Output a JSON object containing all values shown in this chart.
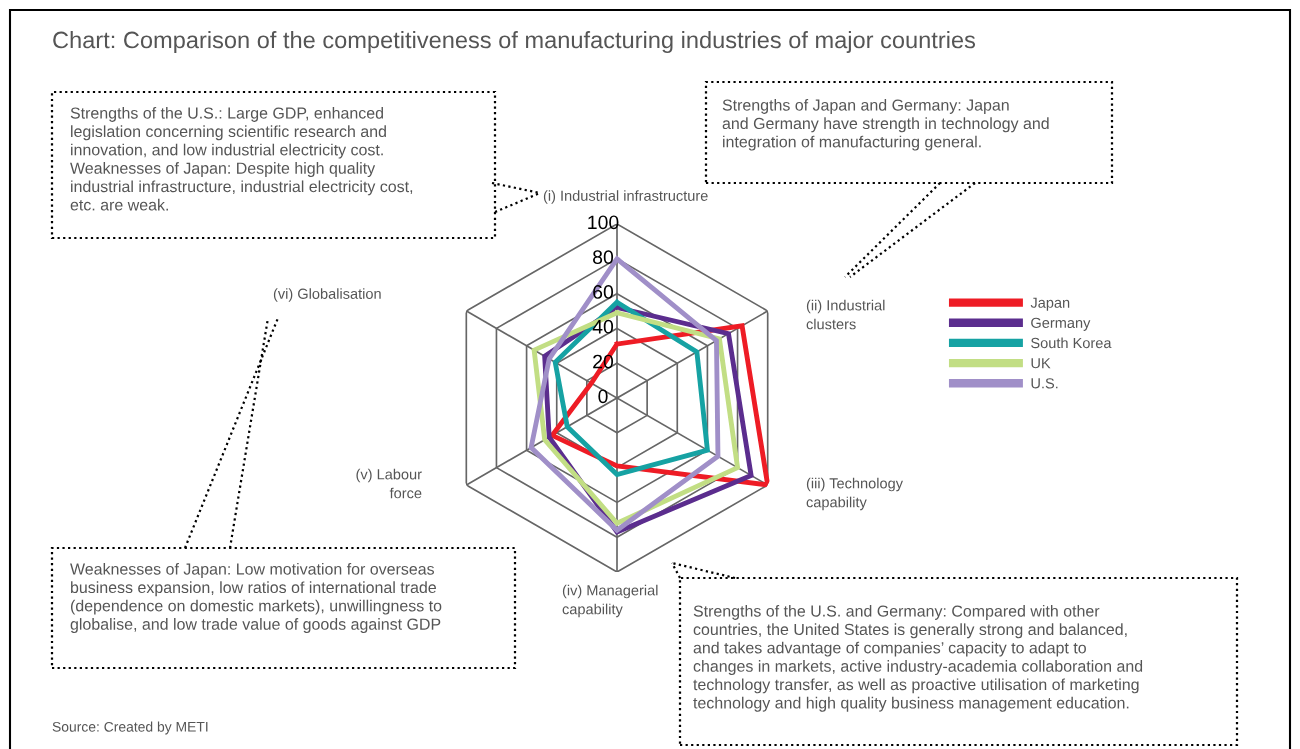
{
  "chart_data": {
    "type": "radar",
    "title": "Chart: Comparison of the competitiveness of manufacturing industries of major countries",
    "categories": [
      "(i) Industrial infrastructure",
      "(ii) Industrial\nclusters",
      "(iii) Technology\ncapability",
      "(iv) Managerial\ncapability",
      "(v) Labour\nforce",
      "(vi) Globalisation"
    ],
    "series": [
      {
        "name": "Japan",
        "color": "#ee1c25",
        "values": [
          31,
          83,
          100,
          39,
          43,
          17
        ]
      },
      {
        "name": "Germany",
        "color": "#5b2d8e",
        "values": [
          52,
          74,
          89,
          77,
          45,
          48
        ]
      },
      {
        "name": "South Korea",
        "color": "#16a2a3",
        "values": [
          55,
          53,
          60,
          44,
          33,
          41
        ]
      },
      {
        "name": "UK",
        "color": "#c2de84",
        "values": [
          49,
          68,
          80,
          72,
          48,
          55
        ]
      },
      {
        "name": "U.S.",
        "color": "#a08fc8",
        "values": [
          80,
          66,
          67,
          76,
          57,
          45
        ]
      }
    ],
    "ylim": [
      0,
      100
    ],
    "yticks": [
      0,
      20,
      40,
      60,
      80,
      100
    ],
    "grid": true,
    "legend": "right",
    "annotations": [
      "Strengths of the U.S.: Large GDP, enhanced\nlegislation concerning scientific research and\ninnovation, and low industrial electricity cost.\nWeaknesses of Japan: Despite high quality\nindustrial infrastructure, industrial electricity cost,\netc. are weak.",
      "Strengths of Japan and Germany: Japan\nand Germany have strength in technology and\nintegration of manufacturing general.",
      "Weaknesses of Japan: Low motivation for overseas\nbusiness expansion, low ratios of international trade\n(dependence on domestic markets), unwillingness to\nglobalise, and low trade value of goods against GDP",
      "Strengths of the U.S. and Germany: Compared with other\ncountries, the United States is generally strong and balanced,\nand takes advantage of companies’ capacity to adapt to\nchanges in markets, active industry-academia collaboration and\ntechnology transfer, as well as proactive utilisation of marketing\ntechnology and high quality business management education.",
      "Source: Created by METI"
    ]
  }
}
